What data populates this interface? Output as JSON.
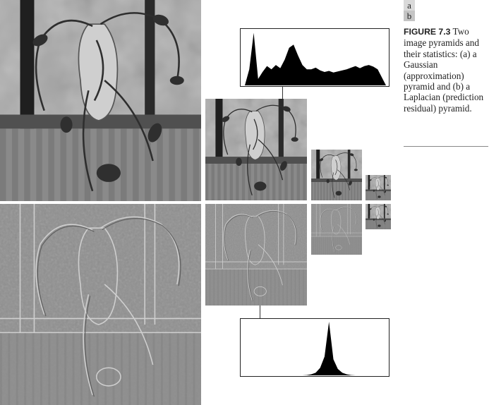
{
  "figure": {
    "panel_labels": [
      "a",
      "b"
    ],
    "caption_label": "FIGURE 7.3",
    "caption_text": "Two image pyramids and their statistics: (a) a Gaussian (approximation) pyramid and (b) a Laplacian (prediction residual) pyramid."
  },
  "colors": {
    "gaussian_bg": "#9a9a9a",
    "laplacian_bg": "#8c8c8c",
    "histogram_fill": "#000000"
  },
  "images": [
    {
      "name": "gaussian-level-0",
      "kind": "gaussian"
    },
    {
      "name": "gaussian-level-1",
      "kind": "gaussian"
    },
    {
      "name": "gaussian-level-2",
      "kind": "gaussian"
    },
    {
      "name": "gaussian-level-3",
      "kind": "gaussian"
    },
    {
      "name": "laplacian-level-0",
      "kind": "laplacian"
    },
    {
      "name": "laplacian-level-1",
      "kind": "laplacian"
    },
    {
      "name": "laplacian-level-2",
      "kind": "laplacian"
    },
    {
      "name": "laplacian-level-3",
      "kind": "gaussian"
    }
  ],
  "chart_data": [
    {
      "type": "area",
      "x": [
        0,
        8,
        16,
        24,
        32,
        40,
        48,
        56,
        64,
        72,
        80,
        88,
        96,
        104,
        112,
        120,
        128,
        136,
        144,
        152,
        160,
        168,
        176,
        184,
        192,
        200,
        208,
        216,
        224,
        232,
        240,
        248,
        255
      ],
      "values": [
        0,
        30,
        98,
        12,
        25,
        36,
        30,
        38,
        32,
        48,
        70,
        76,
        56,
        38,
        30,
        30,
        33,
        28,
        25,
        27,
        24,
        26,
        28,
        30,
        33,
        36,
        32,
        36,
        38,
        35,
        30,
        14,
        0
      ],
      "xlim": [
        0,
        255
      ],
      "ylim": [
        0,
        100
      ]
    },
    {
      "type": "area",
      "x": [
        0,
        8,
        16,
        24,
        32,
        40,
        48,
        56,
        64,
        72,
        80,
        88,
        96,
        104,
        112,
        120,
        128,
        136,
        144,
        152,
        160,
        168,
        176,
        184,
        192,
        200,
        208,
        216,
        224,
        232,
        240,
        248,
        255
      ],
      "values": [
        0,
        0,
        0,
        0,
        0,
        0,
        0,
        0,
        0,
        0,
        0,
        0,
        0,
        0,
        0.5,
        2,
        5,
        14,
        35,
        100,
        30,
        12,
        5,
        2,
        0.5,
        0,
        0,
        0,
        0,
        0,
        0,
        0,
        0
      ],
      "xlim": [
        0,
        255
      ],
      "ylim": [
        0,
        100
      ]
    }
  ]
}
